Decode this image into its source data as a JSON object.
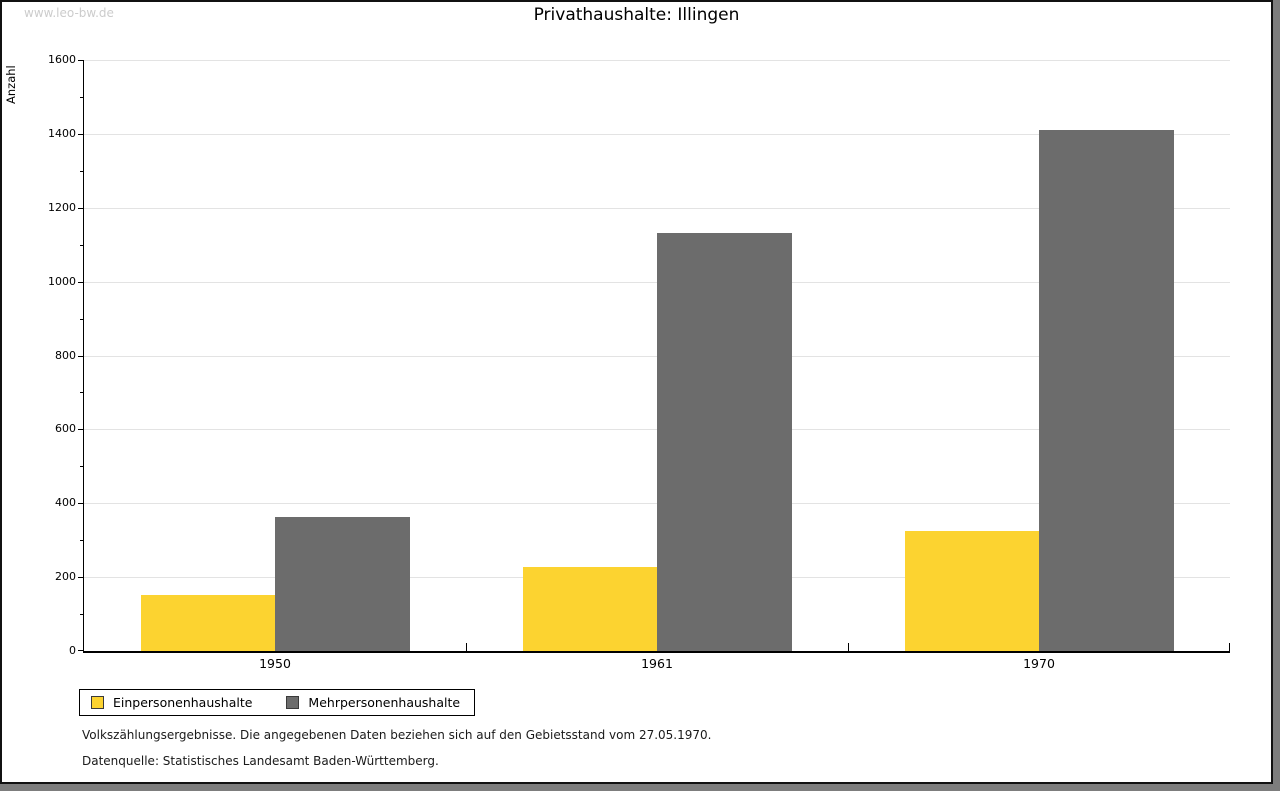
{
  "watermark": "www.leo-bw.de",
  "header": {
    "title": "Privathaushalte: Illingen"
  },
  "chart_data": {
    "type": "bar",
    "title": "Privathaushalte: Illingen",
    "xlabel": "",
    "ylabel": "Anzahl",
    "categories": [
      "1950",
      "1961",
      "1970"
    ],
    "series": [
      {
        "name": "Einpersonenhaushalte",
        "color": "#FCD330",
        "values": [
          152,
          227,
          325
        ]
      },
      {
        "name": "Mehrpersonenhaushalte",
        "color": "#6C6C6C",
        "values": [
          364,
          1131,
          1410
        ]
      }
    ],
    "ylim": [
      0,
      1600
    ],
    "ytick_step": 200,
    "yminor_step": 100,
    "grid": true,
    "legend_position": "bottom-left"
  },
  "footer": {
    "note1": "Volkszählungsergebnisse. Die angegebenen Daten beziehen sich auf den Gebietsstand vom 27.05.1970.",
    "note2": "Datenquelle: Statistisches Landesamt Baden-Württemberg."
  },
  "colors": {
    "series1": "#FCD330",
    "series2": "#6C6C6C",
    "gridline": "#e3e3e3",
    "frame": "#7d7d7d",
    "watermark": "#cccccc"
  }
}
